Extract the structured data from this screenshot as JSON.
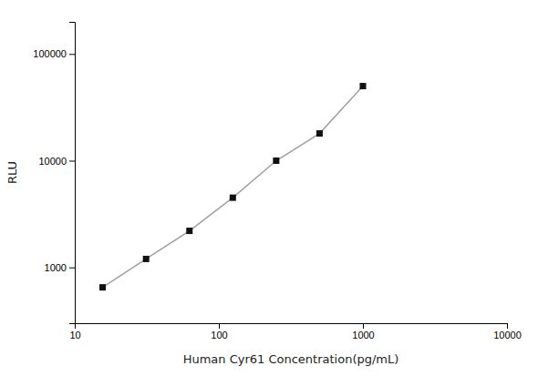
{
  "chart_data": {
    "type": "line",
    "x": [
      15.6,
      31.25,
      62.5,
      125,
      250,
      500,
      1000
    ],
    "values": [
      650,
      1200,
      2200,
      4500,
      10000,
      18000,
      50000
    ],
    "xlabel": "Human Cyr61 Concentration(pg/mL)",
    "ylabel": "RLU",
    "xlim": [
      10,
      10000
    ],
    "ylim": [
      300,
      200000
    ],
    "xticks": [
      10,
      100,
      1000,
      10000
    ],
    "yticks": [
      1000,
      10000,
      100000
    ],
    "log": true,
    "color": "#111111",
    "marker": "square"
  }
}
